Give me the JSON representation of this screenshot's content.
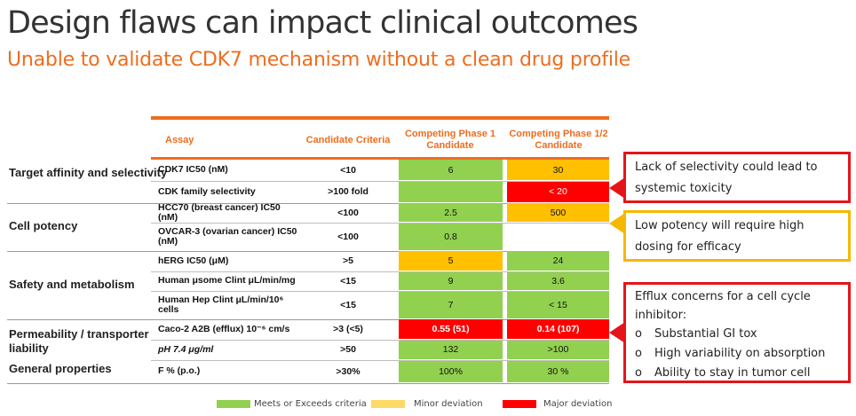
{
  "title": "Design flaws can impact clinical outcomes",
  "subtitle": "Unable to validate CDK7 mechanism without a clean drug profile",
  "colors": {
    "accent": "#ee6d1e",
    "green": "#92d050",
    "amber": "#ffc000",
    "red": "#ff0000",
    "callout_red": "#e5141a",
    "callout_yellow": "#f5b800"
  },
  "table": {
    "headers": {
      "assay": "Assay",
      "criteria": "Candidate Criteria",
      "phase1": "Competing Phase 1 Candidate",
      "phase12": "Competing Phase 1/2 Candidate"
    },
    "categories": {
      "target": "Target affinity and selectivity",
      "potency": "Cell potency",
      "safety": "Safety and metabolism",
      "permeability": "Permeability / transporter liability",
      "general": "General properties"
    },
    "rows": [
      {
        "assay": "CDK7 IC50 (nM)",
        "criteria": "<10",
        "p1": "6",
        "p1_status": "green",
        "p2": "30",
        "p2_status": "amber"
      },
      {
        "assay": "CDK family selectivity",
        "criteria": ">100 fold",
        "p1": "",
        "p1_status": "green",
        "p2": "< 20",
        "p2_status": "red"
      },
      {
        "assay": "HCC70 (breast cancer) IC50 (nM)",
        "criteria": "<100",
        "p1": "2.5",
        "p1_status": "green",
        "p2": "500",
        "p2_status": "amber"
      },
      {
        "assay": "OVCAR-3 (ovarian cancer) IC50 (nM)",
        "criteria": "<100",
        "p1": "0.8",
        "p1_status": "green",
        "p2": "",
        "p2_status": "none"
      },
      {
        "assay": "hERG IC50 (μM)",
        "criteria": ">5",
        "p1": "5",
        "p1_status": "amber",
        "p2": "24",
        "p2_status": "green"
      },
      {
        "assay": "Human μsome Clint μL/min/mg",
        "criteria": "<15",
        "p1": "9",
        "p1_status": "green",
        "p2": "3.6",
        "p2_status": "green"
      },
      {
        "assay": "Human Hep Clint μL/min/10⁶ cells",
        "criteria": "<15",
        "p1": "7",
        "p1_status": "green",
        "p2": "< 15",
        "p2_status": "green"
      },
      {
        "assay": "Caco-2 A2B (efflux) 10⁻⁶ cm/s",
        "criteria": ">3 (<5)",
        "p1": "0.55 (51)",
        "p1_status": "red",
        "p2": "0.14 (107)",
        "p2_status": "red"
      },
      {
        "assay": "pH 7.4 μg/ml",
        "criteria": ">50",
        "p1": "132",
        "p1_status": "green",
        "p2": ">100",
        "p2_status": "green"
      },
      {
        "assay": "F % (p.o.)",
        "criteria": ">30%",
        "p1": "100%",
        "p1_status": "green",
        "p2": "30 %",
        "p2_status": "green"
      }
    ]
  },
  "callouts": {
    "selectivity": "Lack of selectivity could lead to systemic toxicity",
    "potency": "Low potency will require high dosing for efficacy",
    "efflux_title": "Efflux concerns for a cell cycle inhibitor:",
    "efflux_items": [
      "Substantial GI tox",
      "High variability on absorption",
      "Ability to stay in tumor cell"
    ],
    "bullet": "o"
  },
  "legend": {
    "green": "Meets or Exceeds criteria",
    "amber": "Minor deviation",
    "red": "Major deviation"
  }
}
